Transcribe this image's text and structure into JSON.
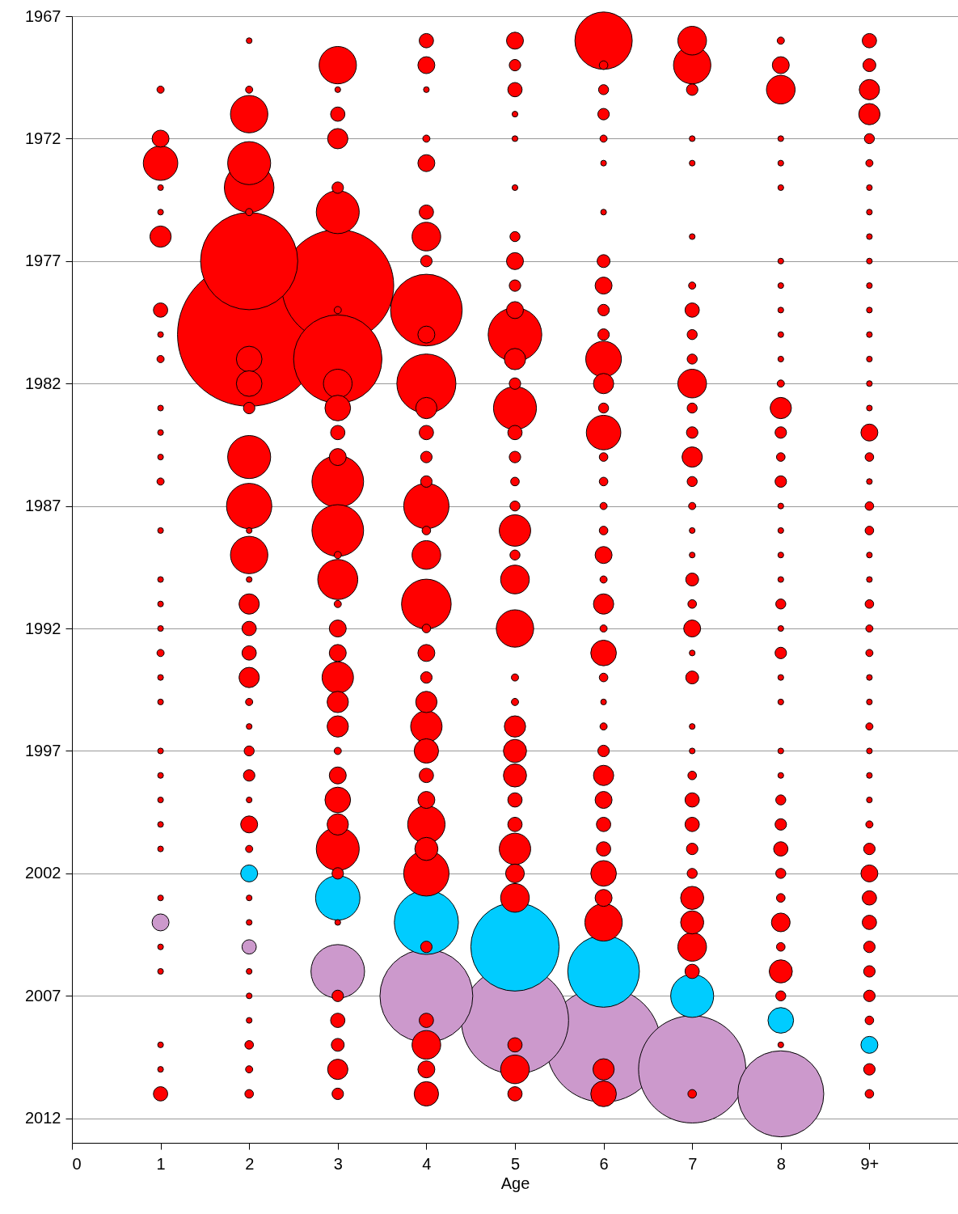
{
  "chart_data": {
    "type": "bubble",
    "xlabel": "Age",
    "xlim": [
      0,
      10
    ],
    "xticks": [
      0,
      1,
      2,
      3,
      4,
      5,
      6,
      7,
      8,
      {
        "value": 9,
        "label": "9+"
      }
    ],
    "ylim": [
      2013,
      1967
    ],
    "yticks": [
      1967,
      1972,
      1977,
      1982,
      1987,
      1992,
      1997,
      2002,
      2007,
      2012
    ],
    "grid": "y",
    "marker": "circle",
    "series": [
      {
        "color": "#ff0000",
        "x": [
          1,
          1,
          1,
          1,
          1,
          1,
          1,
          1,
          1,
          1,
          1,
          1,
          1,
          1,
          1,
          1,
          1,
          1,
          1,
          1,
          1,
          1,
          1,
          1,
          1,
          1,
          1,
          1,
          1,
          1,
          1
        ],
        "values": [
          1970,
          1972,
          1973,
          1974,
          1975,
          1976,
          1979,
          1980,
          1981,
          1983,
          1984,
          1985,
          1986,
          1988,
          1990,
          1991,
          1992,
          1993,
          1994,
          1995,
          1997,
          1998,
          1999,
          2000,
          2001,
          2003,
          2005,
          2006,
          2009,
          2010,
          2011
        ],
        "sizes": [
          0.0025,
          0.014,
          0.058,
          0.0016,
          0.0016,
          0.022,
          0.01,
          0.0016,
          0.0025,
          0.0016,
          0.0016,
          0.0016,
          0.0025,
          0.0016,
          0.0016,
          0.0016,
          0.0016,
          0.0025,
          0.0016,
          0.0016,
          0.0016,
          0.0016,
          0.0016,
          0.0016,
          0.0016,
          0.0016,
          0.0016,
          0.0016,
          0.0016,
          0.0016,
          0.01
        ]
      },
      {
        "color": "#ff0000",
        "x": [
          2,
          2,
          2,
          2,
          2,
          2,
          2,
          2,
          2,
          2,
          2,
          2,
          2,
          2,
          2,
          2,
          2,
          2,
          2,
          2,
          2,
          2,
          2,
          2,
          2,
          2,
          2,
          2,
          2,
          2,
          2,
          2,
          2,
          2,
          2
        ],
        "values": [
          1968,
          1970,
          1971,
          1973,
          1974,
          1975,
          1977,
          1980,
          1981,
          1982,
          1983,
          1985,
          1987,
          1988,
          1989,
          1990,
          1991,
          1992,
          1993,
          1994,
          1995,
          1996,
          1997,
          1998,
          1999,
          2000,
          2001,
          2003,
          2004,
          2006,
          2007,
          2008,
          2009,
          2010,
          2011
        ],
        "sizes": [
          0.0016,
          0.0025,
          0.068,
          0.09,
          0.12,
          0.0025,
          0.46,
          1,
          0.032,
          0.032,
          0.0064,
          0.09,
          0.1,
          0.0016,
          0.068,
          0.0016,
          0.02,
          0.01,
          0.01,
          0.02,
          0.0025,
          0.0016,
          0.0049,
          0.0064,
          0.0016,
          0.014,
          0.0025,
          0.0016,
          0.0016,
          0.0016,
          0.0016,
          0.0016,
          0.0036,
          0.0025,
          0.0036
        ]
      },
      {
        "color": "#ff0000",
        "x": [
          3,
          3,
          3,
          3,
          3,
          3,
          3,
          3,
          3,
          3,
          3,
          3,
          3,
          3,
          3,
          3,
          3,
          3,
          3,
          3,
          3,
          3,
          3,
          3,
          3,
          3,
          3,
          3,
          3,
          3,
          3,
          3,
          3,
          3,
          3
        ],
        "values": [
          1969,
          1970,
          1971,
          1972,
          1974,
          1975,
          1978,
          1979,
          1981,
          1982,
          1983,
          1984,
          1985,
          1986,
          1988,
          1989,
          1990,
          1991,
          1992,
          1993,
          1994,
          1995,
          1996,
          1997,
          1998,
          1999,
          2000,
          2001,
          2002,
          2004,
          2007,
          2008,
          2009,
          2010,
          2011
        ],
        "sizes": [
          0.068,
          0.0016,
          0.01,
          0.02,
          0.0064,
          0.09,
          0.61,
          0.0025,
          0.38,
          0.04,
          0.032,
          0.01,
          0.014,
          0.13,
          0.13,
          0.0025,
          0.078,
          0.0025,
          0.014,
          0.014,
          0.048,
          0.022,
          0.022,
          0.0025,
          0.014,
          0.032,
          0.022,
          0.09,
          0.0064,
          0.0016,
          0.0064,
          0.01,
          0.0081,
          0.02,
          0.0064
        ]
      },
      {
        "color": "#ff0000",
        "x": [
          4,
          4,
          4,
          4,
          4,
          4,
          4,
          4,
          4,
          4,
          4,
          4,
          4,
          4,
          4,
          4,
          4,
          4,
          4,
          4,
          4,
          4,
          4,
          4,
          4,
          4,
          4,
          4,
          4,
          4,
          4,
          4,
          4,
          4,
          4
        ],
        "values": [
          1968,
          1969,
          1970,
          1972,
          1973,
          1975,
          1976,
          1977,
          1979,
          1980,
          1982,
          1983,
          1984,
          1985,
          1986,
          1987,
          1988,
          1989,
          1991,
          1992,
          1993,
          1994,
          1995,
          1996,
          1997,
          1998,
          1999,
          2000,
          2001,
          2002,
          2005,
          2008,
          2009,
          2010,
          2011
        ],
        "sizes": [
          0.01,
          0.014,
          0.0016,
          0.0025,
          0.014,
          0.01,
          0.04,
          0.0064,
          0.25,
          0.014,
          0.17,
          0.022,
          0.01,
          0.0064,
          0.0064,
          0.1,
          0.0036,
          0.04,
          0.12,
          0.0036,
          0.014,
          0.0064,
          0.022,
          0.048,
          0.029,
          0.01,
          0.014,
          0.068,
          0.026,
          0.1,
          0.0064,
          0.01,
          0.04,
          0.014,
          0.029
        ]
      },
      {
        "color": "#ff0000",
        "x": [
          5,
          5,
          5,
          5,
          5,
          5,
          5,
          5,
          5,
          5,
          5,
          5,
          5,
          5,
          5,
          5,
          5,
          5,
          5,
          5,
          5,
          5,
          5,
          5,
          5,
          5,
          5,
          5,
          5,
          5,
          5,
          5,
          5,
          5,
          5
        ],
        "values": [
          1968,
          1969,
          1970,
          1971,
          1972,
          1974,
          1976,
          1977,
          1978,
          1979,
          1980,
          1981,
          1982,
          1983,
          1984,
          1985,
          1986,
          1987,
          1988,
          1989,
          1990,
          1992,
          1994,
          1995,
          1996,
          1997,
          1998,
          1999,
          2000,
          2001,
          2002,
          2003,
          2009,
          2010,
          2011
        ],
        "sizes": [
          0.014,
          0.0064,
          0.01,
          0.0016,
          0.0016,
          0.0016,
          0.0049,
          0.014,
          0.0064,
          0.014,
          0.14,
          0.022,
          0.0064,
          0.09,
          0.01,
          0.0064,
          0.0036,
          0.0049,
          0.048,
          0.0049,
          0.04,
          0.068,
          0.0025,
          0.0025,
          0.022,
          0.026,
          0.026,
          0.01,
          0.01,
          0.048,
          0.017,
          0.04,
          0.01,
          0.04,
          0.01
        ]
      },
      {
        "color": "#ff0000",
        "x": [
          6,
          6,
          6,
          6,
          6,
          6,
          6,
          6,
          6,
          6,
          6,
          6,
          6,
          6,
          6,
          6,
          6,
          6,
          6,
          6,
          6,
          6,
          6,
          6,
          6,
          6,
          6,
          6,
          6,
          6,
          6,
          6,
          6,
          6,
          6,
          6,
          6
        ],
        "values": [
          1968,
          1969,
          1970,
          1971,
          1972,
          1973,
          1975,
          1977,
          1978,
          1979,
          1980,
          1981,
          1982,
          1983,
          1984,
          1985,
          1986,
          1987,
          1988,
          1989,
          1990,
          1991,
          1992,
          1993,
          1994,
          1995,
          1996,
          1997,
          1998,
          1999,
          2000,
          2001,
          2002,
          2003,
          2004,
          2010,
          2011
        ],
        "sizes": [
          0.16,
          0.0036,
          0.0049,
          0.0064,
          0.0025,
          0.0016,
          0.0016,
          0.0081,
          0.014,
          0.0064,
          0.0064,
          0.062,
          0.02,
          0.0049,
          0.058,
          0.0036,
          0.0036,
          0.0025,
          0.0036,
          0.014,
          0.0025,
          0.02,
          0.0025,
          0.032,
          0.0036,
          0.0016,
          0.0025,
          0.0064,
          0.02,
          0.014,
          0.01,
          0.01,
          0.032,
          0.014,
          0.068,
          0.022,
          0.032
        ]
      },
      {
        "color": "#ff0000",
        "x": [
          7,
          7,
          7,
          7,
          7,
          7,
          7,
          7,
          7,
          7,
          7,
          7,
          7,
          7,
          7,
          7,
          7,
          7,
          7,
          7,
          7,
          7,
          7,
          7,
          7,
          7,
          7,
          7,
          7,
          7,
          7,
          7,
          7,
          7,
          7
        ],
        "values": [
          1968,
          1969,
          1970,
          1972,
          1973,
          1976,
          1978,
          1979,
          1980,
          1981,
          1982,
          1983,
          1984,
          1985,
          1986,
          1987,
          1988,
          1989,
          1990,
          1991,
          1992,
          1993,
          1994,
          1996,
          1997,
          1998,
          1999,
          2000,
          2001,
          2002,
          2003,
          2004,
          2005,
          2006,
          2011
        ],
        "sizes": [
          0.04,
          0.068,
          0.0064,
          0.0016,
          0.0016,
          0.0016,
          0.0025,
          0.01,
          0.0049,
          0.0049,
          0.04,
          0.0049,
          0.0064,
          0.02,
          0.0049,
          0.0025,
          0.0016,
          0.0016,
          0.0081,
          0.0036,
          0.014,
          0.0016,
          0.0081,
          0.0016,
          0.0016,
          0.0036,
          0.01,
          0.01,
          0.0064,
          0.0049,
          0.026,
          0.026,
          0.04,
          0.01,
          0.0036
        ]
      },
      {
        "color": "#ff0000",
        "x": [
          8,
          8,
          8,
          8,
          8,
          8,
          8,
          8,
          8,
          8,
          8,
          8,
          8,
          8,
          8,
          8,
          8,
          8,
          8,
          8,
          8,
          8,
          8,
          8,
          8,
          8,
          8,
          8,
          8,
          8,
          8,
          8,
          8,
          8,
          8,
          8,
          8
        ],
        "values": [
          1968,
          1969,
          1970,
          1972,
          1973,
          1974,
          1977,
          1978,
          1979,
          1980,
          1981,
          1982,
          1983,
          1984,
          1985,
          1986,
          1987,
          1988,
          1989,
          1990,
          1991,
          1992,
          1993,
          1994,
          1995,
          1997,
          1998,
          1999,
          2000,
          2001,
          2002,
          2003,
          2004,
          2005,
          2006,
          2007,
          2009
        ],
        "sizes": [
          0.0025,
          0.014,
          0.04,
          0.0016,
          0.0016,
          0.0016,
          0.0016,
          0.0016,
          0.0016,
          0.0016,
          0.0016,
          0.0025,
          0.022,
          0.0064,
          0.0036,
          0.0064,
          0.0016,
          0.0016,
          0.0016,
          0.0016,
          0.0049,
          0.0016,
          0.0064,
          0.0016,
          0.0016,
          0.0016,
          0.0016,
          0.0049,
          0.0064,
          0.01,
          0.0049,
          0.0036,
          0.017,
          0.0036,
          0.026,
          0.0049,
          0.0016
        ]
      },
      {
        "color": "#ff0000",
        "x": [
          9,
          9,
          9,
          9,
          9,
          9,
          9,
          9,
          9,
          9,
          9,
          9,
          9,
          9,
          9,
          9,
          9,
          9,
          9,
          9,
          9,
          9,
          9,
          9,
          9,
          9,
          9,
          9,
          9,
          9,
          9,
          9,
          9,
          9,
          9,
          9,
          9,
          9,
          9,
          9,
          9,
          9,
          9
        ],
        "values": [
          1968,
          1969,
          1970,
          1971,
          1972,
          1973,
          1974,
          1975,
          1976,
          1977,
          1978,
          1979,
          1980,
          1981,
          1982,
          1983,
          1984,
          1985,
          1986,
          1987,
          1988,
          1989,
          1990,
          1991,
          1992,
          1993,
          1994,
          1995,
          1996,
          1997,
          1998,
          1999,
          2000,
          2001,
          2002,
          2003,
          2004,
          2005,
          2006,
          2007,
          2008,
          2010,
          2011
        ],
        "sizes": [
          0.01,
          0.0081,
          0.02,
          0.022,
          0.0049,
          0.0025,
          0.0016,
          0.0016,
          0.0016,
          0.0016,
          0.0016,
          0.0016,
          0.0016,
          0.0016,
          0.0016,
          0.0016,
          0.014,
          0.0036,
          0.0016,
          0.0036,
          0.0036,
          0.0016,
          0.0016,
          0.0036,
          0.0025,
          0.0025,
          0.0016,
          0.0016,
          0.0025,
          0.0016,
          0.0016,
          0.0016,
          0.0025,
          0.0064,
          0.014,
          0.01,
          0.01,
          0.0064,
          0.0064,
          0.0064,
          0.0036,
          0.0064,
          0.0036
        ]
      },
      {
        "color": "#00ccff",
        "x": [
          2,
          3,
          4,
          5,
          6,
          7,
          8,
          9
        ],
        "values": [
          2002,
          2003,
          2004,
          2005,
          2006,
          2007,
          2008,
          2009
        ],
        "sizes": [
          0.014,
          0.096,
          0.2,
          0.38,
          0.25,
          0.09,
          0.032,
          0.014
        ]
      },
      {
        "color": "#cc99cc",
        "x": [
          1,
          2,
          3,
          4,
          5,
          6,
          7,
          8
        ],
        "values": [
          2004,
          2005,
          2006,
          2007,
          2008,
          2009,
          2010,
          2011
        ],
        "sizes": [
          0.014,
          0.01,
          0.14,
          0.42,
          0.56,
          0.64,
          0.56,
          0.36
        ]
      }
    ]
  }
}
